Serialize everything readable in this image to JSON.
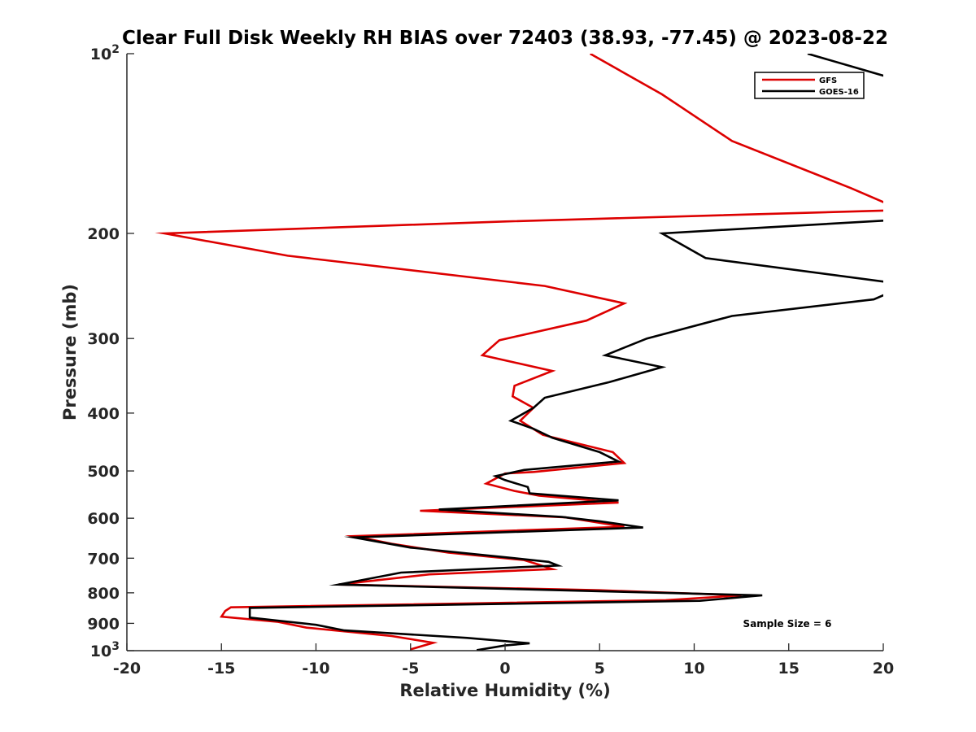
{
  "chart_data": {
    "type": "line",
    "title": "Clear Full Disk Weekly RH BIAS over 72403 (38.93, -77.45) @ 2023-08-22",
    "xlabel": "Relative Humidity (%)",
    "ylabel": "Pressure (mb)",
    "xlim": [
      -20,
      20
    ],
    "ylim": [
      100,
      1000
    ],
    "y_scale": "log",
    "y_reversed": true,
    "xticks": [
      -20,
      -15,
      -10,
      -5,
      0,
      5,
      10,
      15,
      20
    ],
    "xtick_labels": [
      "-20",
      "-15",
      "-10",
      "-5",
      "0",
      "5",
      "10",
      "15",
      "20"
    ],
    "yticks": [
      {
        "value": 100,
        "base": "10",
        "exp": "2"
      },
      {
        "value": 200,
        "label": "200"
      },
      {
        "value": 300,
        "label": "300"
      },
      {
        "value": 400,
        "label": "400"
      },
      {
        "value": 500,
        "label": "500"
      },
      {
        "value": 600,
        "label": "600"
      },
      {
        "value": 700,
        "label": "700"
      },
      {
        "value": 800,
        "label": "800"
      },
      {
        "value": 900,
        "label": "900"
      },
      {
        "value": 1000,
        "base": "10",
        "exp": "3"
      }
    ],
    "legend": {
      "position": "top-right",
      "entries": [
        "GFS",
        "GOES-16"
      ]
    },
    "annotation": "Sample Size = 6",
    "grid": false,
    "series": [
      {
        "name": "GFS",
        "color": "#dd0000",
        "points": [
          [
            4.5,
            100
          ],
          [
            8.3,
            117
          ],
          [
            12.0,
            140
          ],
          [
            18.3,
            168
          ],
          [
            20.5,
            180
          ],
          [
            20.5,
            183
          ],
          [
            0,
            191
          ],
          [
            -18.0,
            200
          ],
          [
            -11.5,
            218
          ],
          [
            2.1,
            245
          ],
          [
            6.3,
            262
          ],
          [
            4.3,
            280
          ],
          [
            -0.3,
            302
          ],
          [
            -1.2,
            320
          ],
          [
            2.5,
            340
          ],
          [
            0.5,
            360
          ],
          [
            0.4,
            375
          ],
          [
            1.5,
            392
          ],
          [
            0.8,
            412
          ],
          [
            2.0,
            435
          ],
          [
            5.7,
            465
          ],
          [
            6.3,
            485
          ],
          [
            1.5,
            502
          ],
          [
            0.0,
            505
          ],
          [
            -1.0,
            525
          ],
          [
            0.5,
            540
          ],
          [
            1.8,
            550
          ],
          [
            6.0,
            565
          ],
          [
            -4.5,
            583
          ],
          [
            3.2,
            598
          ],
          [
            6.3,
            620
          ],
          [
            -8.0,
            643
          ],
          [
            -6.0,
            662
          ],
          [
            -3.0,
            685
          ],
          [
            1.0,
            705
          ],
          [
            1.8,
            718
          ],
          [
            2.5,
            730
          ],
          [
            -4.0,
            745
          ],
          [
            -8.8,
            775
          ],
          [
            5.0,
            792
          ],
          [
            12.5,
            808
          ],
          [
            8.5,
            823
          ],
          [
            -14.5,
            846
          ],
          [
            -14.8,
            858
          ],
          [
            -15.0,
            877
          ],
          [
            -12.0,
            895
          ],
          [
            -10.5,
            915
          ],
          [
            -6.0,
            945
          ],
          [
            -3.8,
            970
          ],
          [
            -5.0,
            995
          ]
        ]
      },
      {
        "name": "GOES-16",
        "color": "#000000",
        "points": [
          [
            16.0,
            100
          ],
          [
            20.5,
            110
          ],
          [
            20.5,
            190
          ],
          [
            8.3,
            200
          ],
          [
            10.6,
            220
          ],
          [
            20.5,
            242
          ],
          [
            20.5,
            250
          ],
          [
            19.5,
            258
          ],
          [
            12.0,
            275
          ],
          [
            7.5,
            300
          ],
          [
            5.3,
            320
          ],
          [
            8.3,
            335
          ],
          [
            5.5,
            355
          ],
          [
            2.1,
            377
          ],
          [
            1.5,
            392
          ],
          [
            0.3,
            412
          ],
          [
            1.5,
            425
          ],
          [
            2.5,
            440
          ],
          [
            5.0,
            465
          ],
          [
            6.0,
            482
          ],
          [
            1.0,
            498
          ],
          [
            -0.5,
            510
          ],
          [
            0.0,
            518
          ],
          [
            1.2,
            532
          ],
          [
            1.3,
            545
          ],
          [
            6.0,
            560
          ],
          [
            -3.5,
            580
          ],
          [
            3.0,
            597
          ],
          [
            5.0,
            607
          ],
          [
            7.3,
            622
          ],
          [
            -8.0,
            646
          ],
          [
            -5.0,
            672
          ],
          [
            0.5,
            700
          ],
          [
            2.3,
            710
          ],
          [
            2.8,
            720
          ],
          [
            -5.5,
            740
          ],
          [
            -8.8,
            775
          ],
          [
            5.0,
            795
          ],
          [
            13.6,
            808
          ],
          [
            10.3,
            825
          ],
          [
            -13.5,
            848
          ],
          [
            -13.5,
            880
          ],
          [
            -10.0,
            905
          ],
          [
            -8.5,
            925
          ],
          [
            -2.0,
            952
          ],
          [
            1.3,
            972
          ],
          [
            0.0,
            980
          ],
          [
            -1.5,
            998
          ]
        ]
      }
    ]
  }
}
